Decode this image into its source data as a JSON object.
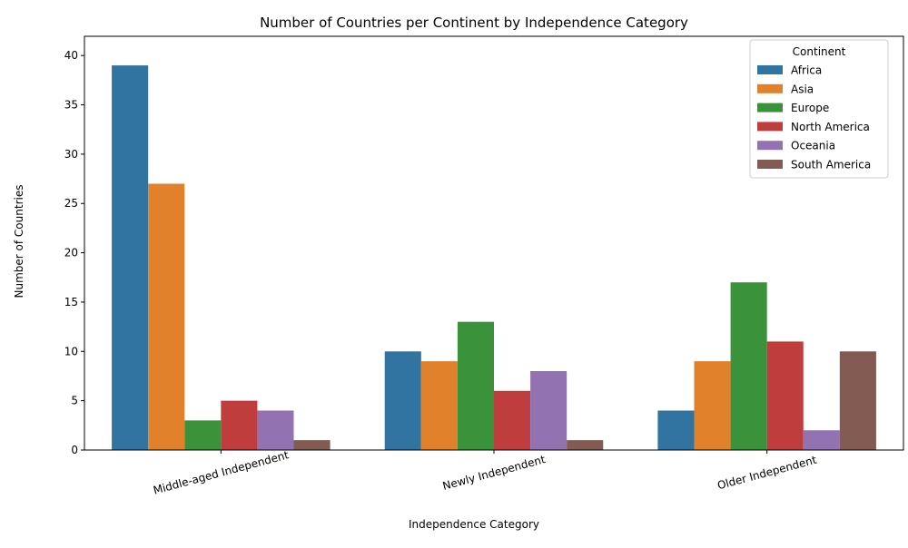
{
  "chart_data": {
    "type": "bar",
    "title": "Number of Countries per Continent by Independence Category",
    "xlabel": "Independence Category",
    "ylabel": "Number of Countries",
    "categories": [
      "Middle-aged Independent",
      "Newly Independent",
      "Older Independent"
    ],
    "ylim": [
      0,
      41.95
    ],
    "yticks": [
      0,
      5,
      10,
      15,
      20,
      25,
      30,
      35,
      40
    ],
    "grid": false,
    "legend": {
      "title": "Continent",
      "placement": "top-right"
    },
    "series": [
      {
        "name": "Africa",
        "color": "#3274a1",
        "values": [
          39,
          10,
          4
        ]
      },
      {
        "name": "Asia",
        "color": "#e1812c",
        "values": [
          27,
          9,
          9
        ]
      },
      {
        "name": "Europe",
        "color": "#3a923a",
        "values": [
          3,
          13,
          17
        ]
      },
      {
        "name": "North America",
        "color": "#c03d3e",
        "values": [
          5,
          6,
          11
        ]
      },
      {
        "name": "Oceania",
        "color": "#9372b2",
        "values": [
          4,
          8,
          2
        ]
      },
      {
        "name": "South America",
        "color": "#845b53",
        "values": [
          1,
          1,
          10
        ]
      }
    ]
  }
}
